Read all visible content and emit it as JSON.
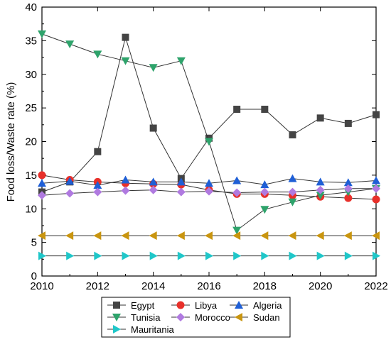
{
  "chart_data": {
    "type": "line",
    "title": "",
    "xlabel": "",
    "ylabel": "Food loss/Waste rate (%)",
    "xlim": [
      2010,
      2022
    ],
    "ylim": [
      0,
      40
    ],
    "xticks": [
      2010,
      2012,
      2014,
      2016,
      2018,
      2020,
      2022
    ],
    "yticks": [
      0,
      5,
      10,
      15,
      20,
      25,
      30,
      35,
      40
    ],
    "grid": false,
    "legend_position": "bottom",
    "x": [
      2010,
      2011,
      2012,
      2013,
      2014,
      2015,
      2016,
      2017,
      2018,
      2019,
      2020,
      2021,
      2022
    ],
    "series": [
      {
        "name": "Egypt",
        "color": "#444444",
        "marker": "square",
        "values": [
          12.5,
          14.0,
          18.5,
          35.5,
          22.0,
          14.5,
          20.5,
          24.8,
          24.8,
          21.0,
          23.5,
          22.7,
          24.0
        ]
      },
      {
        "name": "Libya",
        "color": "#e8302a",
        "marker": "circle",
        "values": [
          15.0,
          14.3,
          14.0,
          13.8,
          13.7,
          13.6,
          12.8,
          12.2,
          12.2,
          12.0,
          11.8,
          11.6,
          11.4
        ]
      },
      {
        "name": "Algeria",
        "color": "#1f5fd6",
        "marker": "triangle-up",
        "values": [
          13.8,
          14.1,
          13.5,
          14.3,
          14.0,
          14.0,
          13.8,
          14.2,
          13.6,
          14.5,
          14.0,
          13.9,
          14.2
        ]
      },
      {
        "name": "Tunisia",
        "color": "#2ea36b",
        "marker": "triangle-down",
        "values": [
          36.0,
          34.5,
          33.0,
          32.0,
          31.0,
          32.0,
          20.0,
          6.8,
          9.9,
          11.0,
          12.0,
          12.5,
          13.0
        ]
      },
      {
        "name": "Morocco",
        "color": "#b07ae0",
        "marker": "diamond",
        "values": [
          12.0,
          12.3,
          12.5,
          12.7,
          12.8,
          12.5,
          12.6,
          12.4,
          12.5,
          12.5,
          12.8,
          13.0,
          13.0
        ]
      },
      {
        "name": "Sudan",
        "color": "#c9950f",
        "marker": "triangle-left",
        "values": [
          6.0,
          6.0,
          6.0,
          6.0,
          6.0,
          6.0,
          6.0,
          6.0,
          6.0,
          6.0,
          6.0,
          6.0,
          6.0
        ]
      },
      {
        "name": "Mauritania",
        "color": "#1fc7c9",
        "marker": "triangle-right",
        "values": [
          3.0,
          3.0,
          3.0,
          3.0,
          3.0,
          3.0,
          3.0,
          3.0,
          3.0,
          3.0,
          3.0,
          3.0,
          3.0
        ]
      }
    ]
  }
}
